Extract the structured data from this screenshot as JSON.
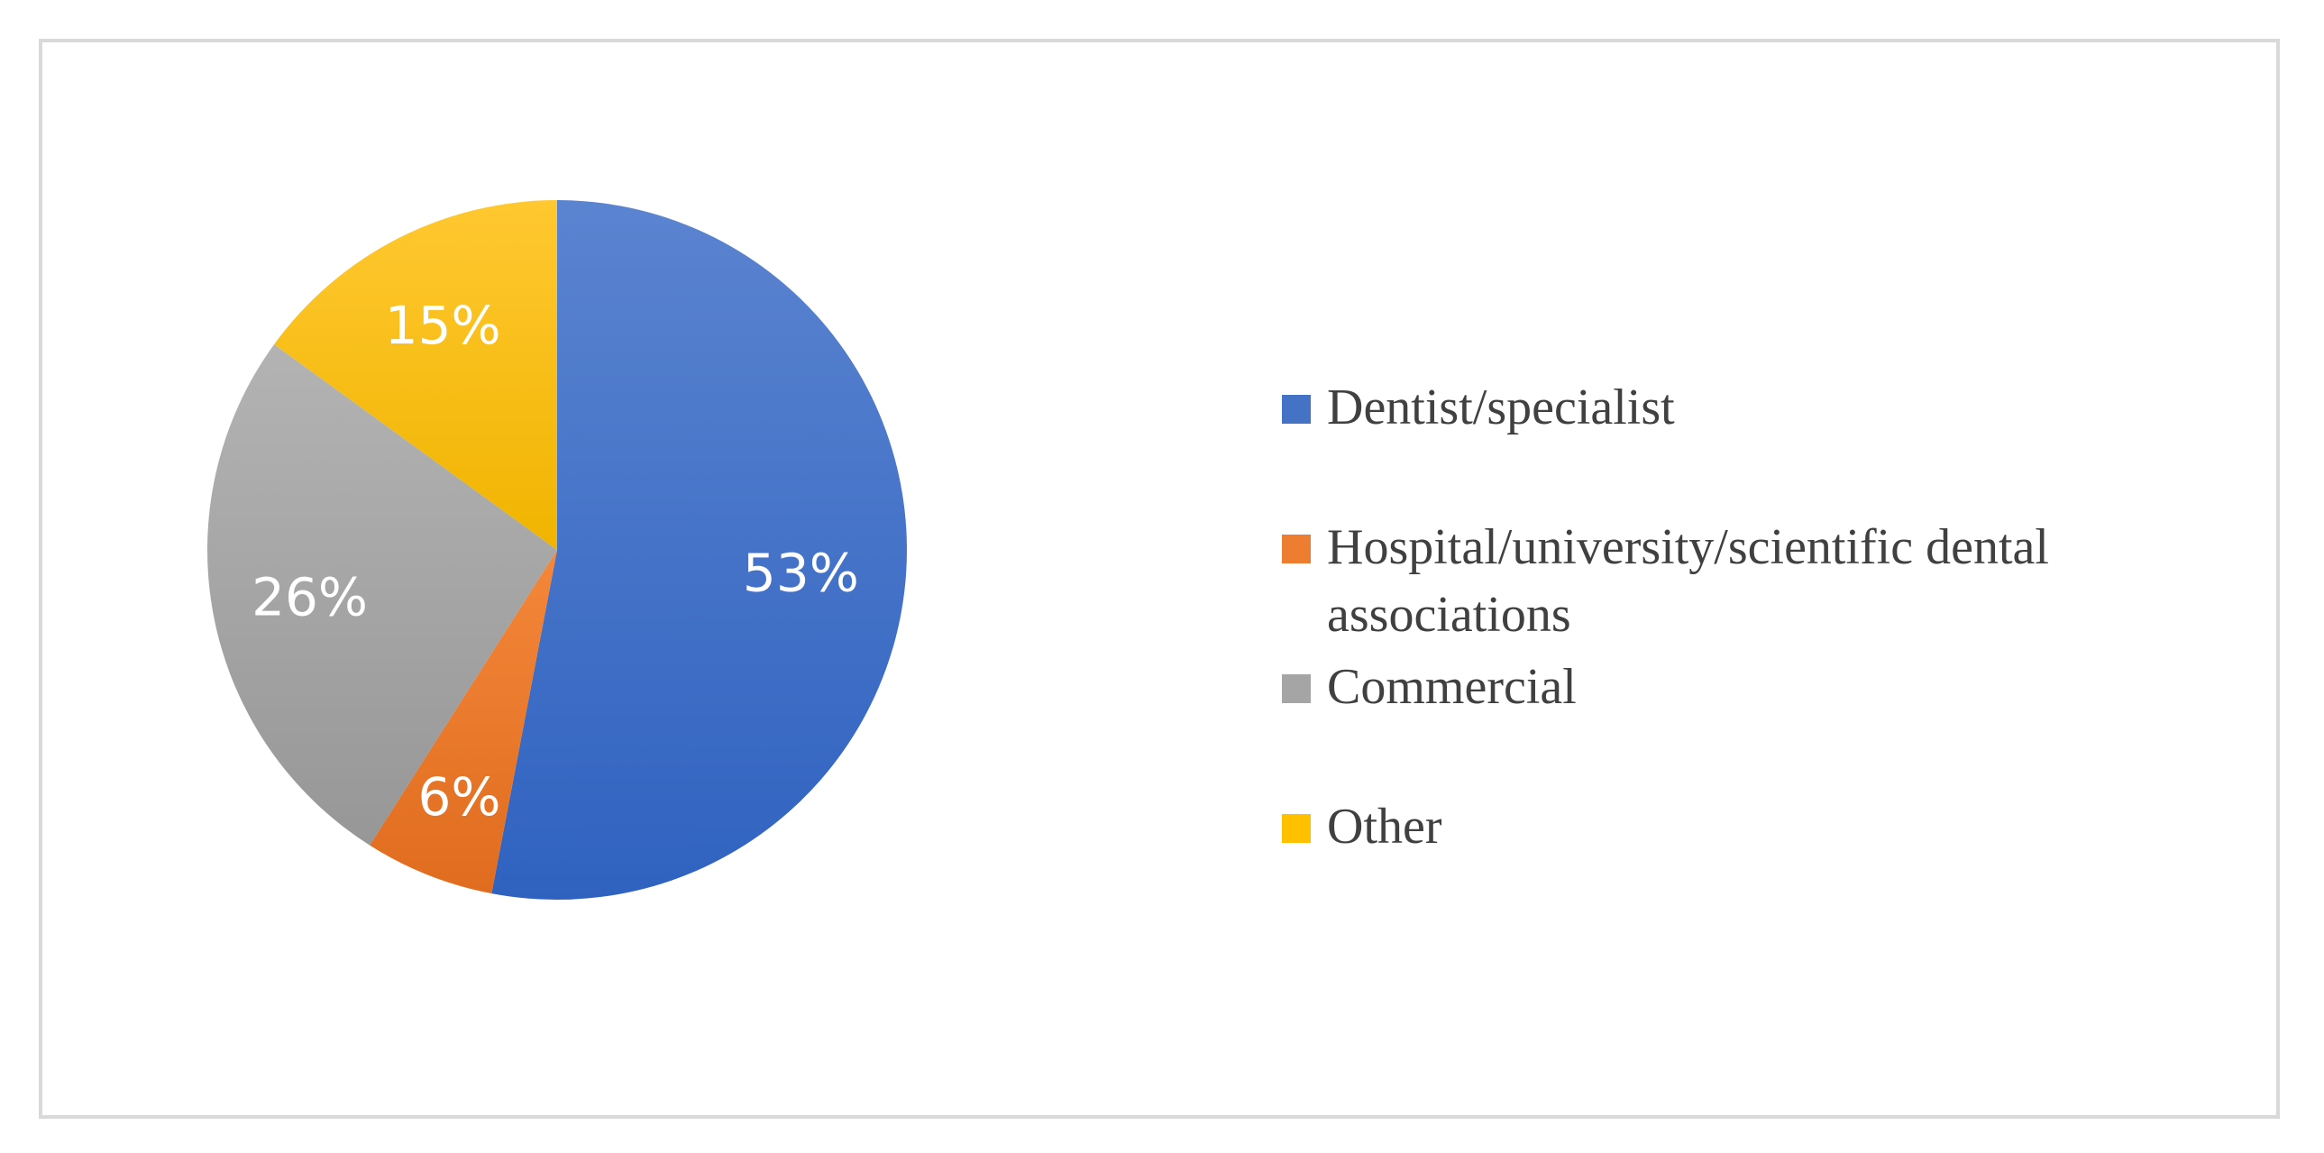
{
  "chart_data": {
    "type": "pie",
    "categories": [
      "Dentist/specialist",
      "Hospital/university/scientific dental associations",
      "Commercial",
      "Other"
    ],
    "values": [
      53,
      6,
      26,
      15
    ],
    "data_labels": [
      "53%",
      "6%",
      "26%",
      "15%"
    ],
    "colors": [
      "#4472c4",
      "#ed7d31",
      "#a5a5a5",
      "#ffc000"
    ],
    "title": "",
    "legend_position": "right",
    "start_angle": "12 o'clock, clockwise"
  }
}
